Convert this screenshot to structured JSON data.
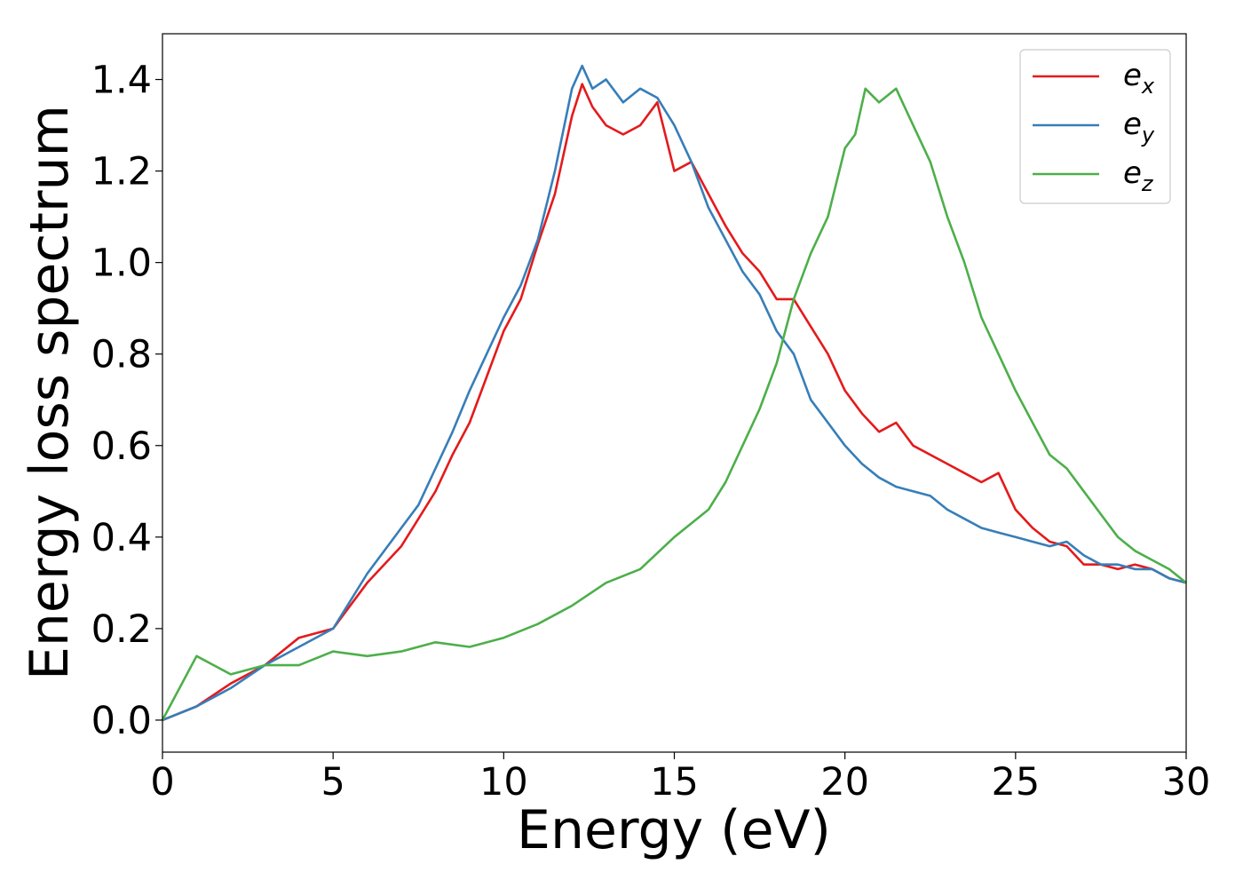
{
  "chart_data": {
    "type": "line",
    "xlabel": "Energy (eV)",
    "ylabel": "Energy loss spectrum",
    "xlim": [
      0,
      30
    ],
    "ylim": [
      -0.07,
      1.5
    ],
    "xticks": [
      "0",
      "5",
      "10",
      "15",
      "20",
      "25",
      "30"
    ],
    "yticks": [
      "0.0",
      "0.2",
      "0.4",
      "0.6",
      "0.8",
      "1.0",
      "1.2",
      "1.4"
    ],
    "grid": false,
    "legend": {
      "placement": "top-right"
    },
    "series": [
      {
        "name": "e",
        "subscript": "x",
        "color": "#e41a1c",
        "x": [
          0,
          1,
          2,
          3,
          4,
          5,
          6,
          7,
          7.5,
          8,
          8.5,
          9,
          9.5,
          10,
          10.5,
          11,
          11.5,
          12,
          12.3,
          12.6,
          13,
          13.5,
          14,
          14.5,
          15,
          15.5,
          16,
          16.5,
          17,
          17.5,
          18,
          18.5,
          19,
          19.5,
          20,
          20.5,
          21,
          21.5,
          22,
          22.5,
          23,
          23.5,
          24,
          24.5,
          25,
          25.5,
          26,
          26.5,
          27,
          27.5,
          28,
          28.5,
          29,
          29.5,
          30
        ],
        "y": [
          0.0,
          0.03,
          0.08,
          0.12,
          0.18,
          0.2,
          0.3,
          0.38,
          0.44,
          0.5,
          0.58,
          0.65,
          0.75,
          0.85,
          0.92,
          1.04,
          1.15,
          1.32,
          1.39,
          1.34,
          1.3,
          1.28,
          1.3,
          1.35,
          1.2,
          1.22,
          1.15,
          1.08,
          1.02,
          0.98,
          0.92,
          0.92,
          0.86,
          0.8,
          0.72,
          0.67,
          0.63,
          0.65,
          0.6,
          0.58,
          0.56,
          0.54,
          0.52,
          0.54,
          0.46,
          0.42,
          0.39,
          0.38,
          0.34,
          0.34,
          0.33,
          0.34,
          0.33,
          0.31,
          0.3
        ]
      },
      {
        "name": "e",
        "subscript": "y",
        "color": "#377eb8",
        "x": [
          0,
          1,
          2,
          3,
          4,
          5,
          6,
          7,
          7.5,
          8,
          8.5,
          9,
          9.5,
          10,
          10.5,
          11,
          11.5,
          12,
          12.3,
          12.6,
          13,
          13.5,
          14,
          14.5,
          15,
          15.5,
          16,
          16.5,
          17,
          17.5,
          18,
          18.5,
          19,
          19.5,
          20,
          20.5,
          21,
          21.5,
          22,
          22.5,
          23,
          23.5,
          24,
          24.5,
          25,
          25.5,
          26,
          26.5,
          27,
          27.5,
          28,
          28.5,
          29,
          29.5,
          30
        ],
        "y": [
          0.0,
          0.03,
          0.07,
          0.12,
          0.16,
          0.2,
          0.32,
          0.42,
          0.47,
          0.55,
          0.63,
          0.72,
          0.8,
          0.88,
          0.95,
          1.05,
          1.2,
          1.38,
          1.43,
          1.38,
          1.4,
          1.35,
          1.38,
          1.36,
          1.3,
          1.22,
          1.12,
          1.05,
          0.98,
          0.93,
          0.85,
          0.8,
          0.7,
          0.65,
          0.6,
          0.56,
          0.53,
          0.51,
          0.5,
          0.49,
          0.46,
          0.44,
          0.42,
          0.41,
          0.4,
          0.39,
          0.38,
          0.39,
          0.36,
          0.34,
          0.34,
          0.33,
          0.33,
          0.31,
          0.3
        ]
      },
      {
        "name": "e",
        "subscript": "z",
        "color": "#4daf4a",
        "x": [
          0,
          0.5,
          1,
          1.5,
          2,
          3,
          4,
          5,
          6,
          7,
          8,
          9,
          10,
          11,
          12,
          13,
          14,
          15,
          16,
          16.5,
          17,
          17.5,
          18,
          18.5,
          19,
          19.5,
          20,
          20.3,
          20.6,
          21,
          21.5,
          22,
          22.5,
          23,
          23.5,
          24,
          24.5,
          25,
          25.5,
          26,
          26.5,
          27,
          27.5,
          28,
          28.5,
          29,
          29.5,
          30
        ],
        "y": [
          0.0,
          0.07,
          0.14,
          0.12,
          0.1,
          0.12,
          0.12,
          0.15,
          0.14,
          0.15,
          0.17,
          0.16,
          0.18,
          0.21,
          0.25,
          0.3,
          0.33,
          0.4,
          0.46,
          0.52,
          0.6,
          0.68,
          0.78,
          0.92,
          1.02,
          1.1,
          1.25,
          1.28,
          1.38,
          1.35,
          1.38,
          1.3,
          1.22,
          1.1,
          1.0,
          0.88,
          0.8,
          0.72,
          0.65,
          0.58,
          0.55,
          0.5,
          0.45,
          0.4,
          0.37,
          0.35,
          0.33,
          0.3
        ]
      }
    ]
  }
}
